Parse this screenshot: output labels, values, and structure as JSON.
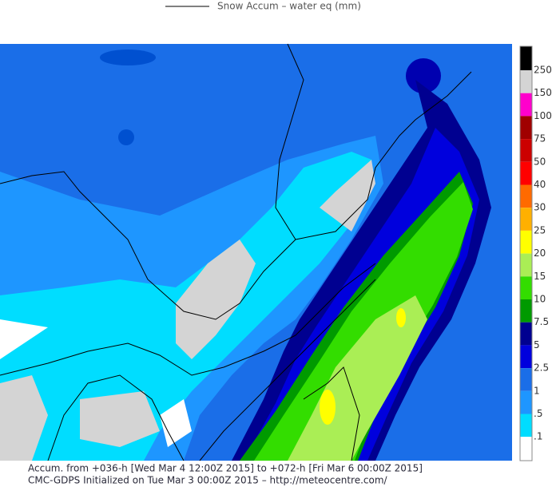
{
  "legend": {
    "title": "Snow Accum – water eq (mm)"
  },
  "colorbar": {
    "top_color": "#000000",
    "steps": [
      {
        "label": "250",
        "color": "#d4d4d4"
      },
      {
        "label": "150",
        "color": "#ff00cc"
      },
      {
        "label": "100",
        "color": "#a00000"
      },
      {
        "label": "75",
        "color": "#cc0000"
      },
      {
        "label": "50",
        "color": "#ff0000"
      },
      {
        "label": "40",
        "color": "#ff6a00"
      },
      {
        "label": "30",
        "color": "#ffb000"
      },
      {
        "label": "25",
        "color": "#ffff00"
      },
      {
        "label": "20",
        "color": "#aaee55"
      },
      {
        "label": "15",
        "color": "#33dd00"
      },
      {
        "label": "10",
        "color": "#009a00"
      },
      {
        "label": "7.5",
        "color": "#000090"
      },
      {
        "label": "5",
        "color": "#0000dd"
      },
      {
        "label": "2.5",
        "color": "#1a6ee8"
      },
      {
        "label": "1",
        "color": "#1e96ff"
      },
      {
        "label": ".5",
        "color": "#00ddff"
      },
      {
        "label": ".1",
        "color": "#ffffff"
      }
    ]
  },
  "footer": {
    "line1": "Accum. from +036-h [Wed Mar 4 12:00Z 2015] to +072-h [Fri Mar 6 00:00Z 2015]",
    "line2": "CMC-GDPS Initialized on Tue Mar 3 00:00Z 2015 – http://meteocentre.com/"
  }
}
